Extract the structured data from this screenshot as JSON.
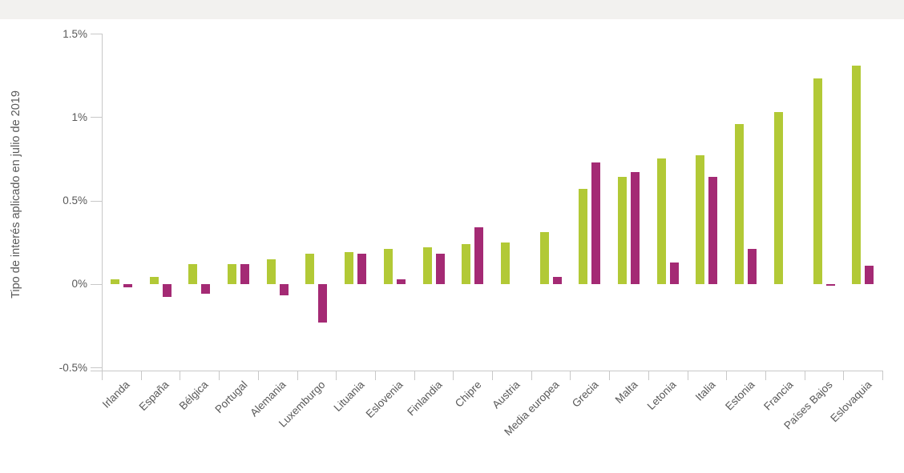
{
  "page": {
    "background_color": "#ffffff",
    "top_band_color": "#f2f1ef"
  },
  "colors": {
    "series_green": "#b2c936",
    "series_magenta": "#a42a74",
    "axis_line": "#c8c8c8",
    "label_text": "#595959"
  },
  "chart_data": {
    "type": "bar",
    "title": "",
    "xlabel": "",
    "ylabel": "Tipo de interés aplicado en julio de 2019",
    "ylim": [
      -0.5,
      1.5
    ],
    "grid": false,
    "legend_position": "none",
    "yticks": [
      {
        "value": 1.5,
        "label": "1.5%"
      },
      {
        "value": 1.0,
        "label": "1%"
      },
      {
        "value": 0.5,
        "label": "0.5%"
      },
      {
        "value": 0.0,
        "label": "0%"
      },
      {
        "value": -0.5,
        "label": "-0.5%"
      }
    ],
    "categories": [
      "Irlanda",
      "España",
      "Bélgica",
      "Portugal",
      "Alemania",
      "Luxemburgo",
      "Lituania",
      "Eslovenia",
      "Finlandia",
      "Chipre",
      "Austria",
      "Media europea",
      "Grecia",
      "Malta",
      "Letonia",
      "Italia",
      "Estonia",
      "Francia",
      "Países Bajos",
      "Eslovaquia"
    ],
    "series": [
      {
        "name": "series-green",
        "color": "#b2c936",
        "values": [
          0.03,
          0.04,
          0.12,
          0.12,
          0.15,
          0.18,
          0.19,
          0.21,
          0.22,
          0.24,
          0.25,
          0.31,
          0.57,
          0.64,
          0.75,
          0.77,
          0.96,
          1.03,
          1.23,
          1.31
        ]
      },
      {
        "name": "series-magenta",
        "color": "#a42a74",
        "values": [
          -0.02,
          -0.08,
          -0.06,
          0.12,
          -0.07,
          -0.23,
          0.18,
          0.03,
          0.18,
          0.34,
          null,
          0.04,
          0.73,
          0.67,
          0.13,
          0.64,
          0.21,
          null,
          -0.01,
          0.11
        ]
      }
    ]
  }
}
